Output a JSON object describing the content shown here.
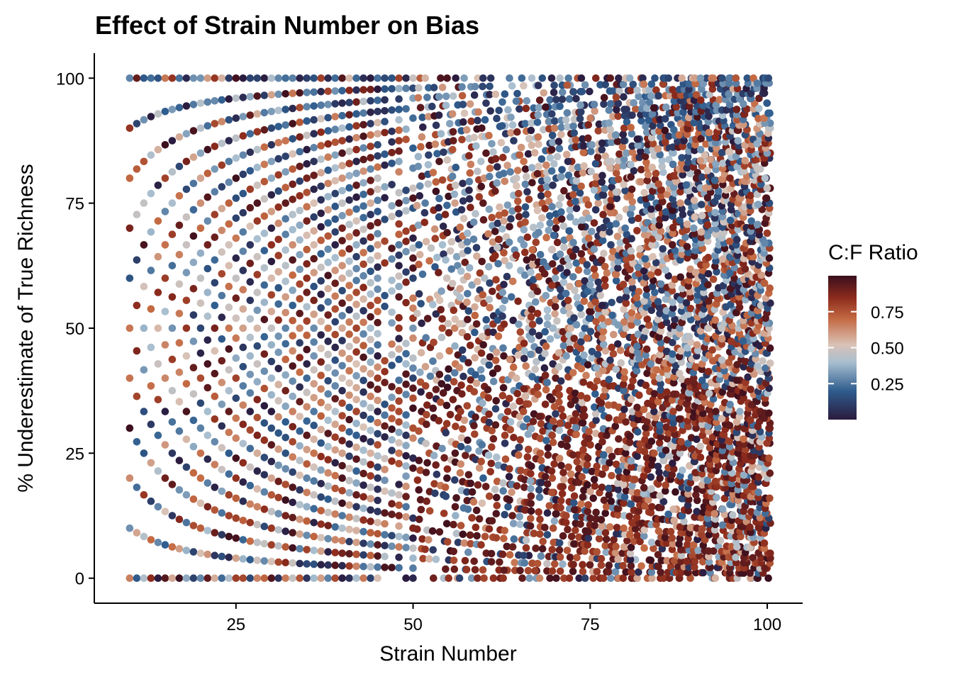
{
  "chart_data": {
    "type": "scatter",
    "title": "Effect of Strain Number on Bias",
    "xlabel": "Strain Number",
    "ylabel": "% Underestimate of True Richness",
    "xlim": [
      5,
      105
    ],
    "ylim": [
      -5,
      105
    ],
    "x_ticks": [
      25,
      50,
      75,
      100
    ],
    "y_ticks": [
      0,
      25,
      50,
      75,
      100
    ],
    "grid": false,
    "legend": {
      "title": "C:F Ratio",
      "position": "right",
      "range": [
        0,
        1
      ],
      "ticks": [
        0.25,
        0.5,
        0.75
      ],
      "tick_labels": [
        "0.25",
        "0.50",
        "0.75"
      ],
      "colors": [
        "#2b1a3d",
        "#2f5d8e",
        "#a9bfd0",
        "#d9c2b6",
        "#c46a43",
        "#8b2a1c",
        "#3a0f1e"
      ]
    },
    "description_of_points": "Dense scatter of simulated points; x = strain number (10 to 100, integers), y = percent underestimate of true richness (0 to 100), color = C:F ratio. Points follow concentric arcs y = 100*k/n.",
    "point_generation": {
      "x_min": 10,
      "x_max": 100,
      "arc_fraction_rule": "y = 100 * k / n, k = 0..n"
    }
  }
}
